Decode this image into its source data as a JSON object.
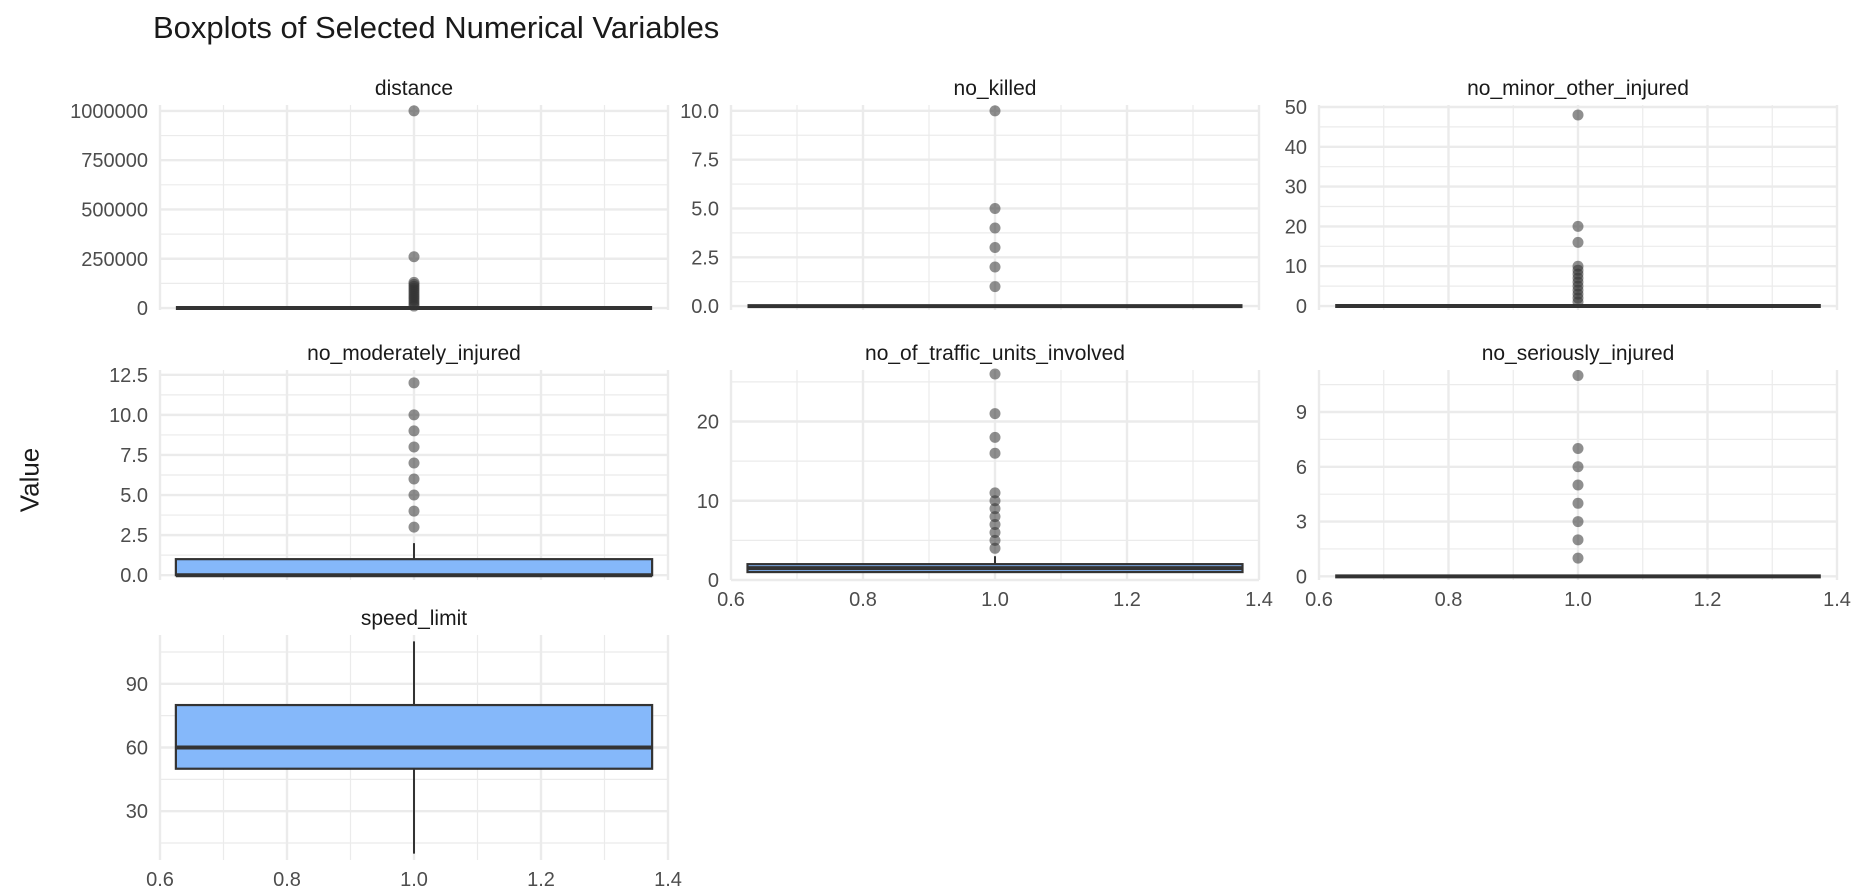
{
  "title": "Boxplots of Selected Numerical Variables",
  "ylabel": "Value",
  "colors": {
    "box_fill": "#85B8FA",
    "line": "#333333",
    "outlier": "#333333",
    "grid": "#EBEBEB"
  },
  "chart_data": {
    "type": "boxplot",
    "title": "Boxplots of Selected Numerical Variables",
    "ylabel": "Value",
    "xlim": [
      0.6,
      1.4
    ],
    "x_ticks": [
      "0.6",
      "0.8",
      "1.0",
      "1.2",
      "1.4"
    ],
    "box_x_range": [
      0.625,
      1.375
    ],
    "grid": true,
    "facets": [
      {
        "name": "distance",
        "ylim": [
          -10000,
          1030000
        ],
        "y_ticks": [
          0,
          250000,
          500000,
          750000,
          1000000
        ],
        "y_tick_labels": [
          "0",
          "250000",
          "500000",
          "750000",
          "1000000"
        ],
        "stats": {
          "lower_whisker": 0,
          "q1": 0,
          "median": 0,
          "q3": 0,
          "upper_whisker": 0
        },
        "outliers": [
          1000000,
          260000,
          130000,
          120000,
          110000,
          100000,
          90000,
          80000,
          70000,
          60000,
          50000,
          40000,
          30000,
          20000,
          10000
        ],
        "show_x_ticks": false
      },
      {
        "name": "no_killed",
        "ylim": [
          -0.2,
          10.3
        ],
        "y_ticks": [
          0,
          2.5,
          5,
          7.5,
          10
        ],
        "y_tick_labels": [
          "0.0",
          "2.5",
          "5.0",
          "7.5",
          "10.0"
        ],
        "stats": {
          "lower_whisker": 0,
          "q1": 0,
          "median": 0,
          "q3": 0,
          "upper_whisker": 0
        },
        "outliers": [
          10,
          5,
          4,
          3,
          2,
          1
        ],
        "show_x_ticks": false
      },
      {
        "name": "no_minor_other_injured",
        "ylim": [
          -1,
          50.5
        ],
        "y_ticks": [
          0,
          10,
          20,
          30,
          40,
          50
        ],
        "y_tick_labels": [
          "0",
          "10",
          "20",
          "30",
          "40",
          "50"
        ],
        "stats": {
          "lower_whisker": 0,
          "q1": 0,
          "median": 0,
          "q3": 0,
          "upper_whisker": 0
        },
        "outliers": [
          48,
          20,
          16,
          10,
          9,
          8,
          7,
          6,
          5,
          4,
          3,
          2,
          1
        ],
        "show_x_ticks": false
      },
      {
        "name": "no_moderately_injured",
        "ylim": [
          -0.3,
          12.8
        ],
        "y_ticks": [
          0,
          2.5,
          5,
          7.5,
          10,
          12.5
        ],
        "y_tick_labels": [
          "0.0",
          "2.5",
          "5.0",
          "7.5",
          "10.0",
          "12.5"
        ],
        "stats": {
          "lower_whisker": 0,
          "q1": 0,
          "median": 0,
          "q3": 1,
          "upper_whisker": 2
        },
        "outliers": [
          12,
          10,
          9,
          8,
          7,
          6,
          5,
          4,
          3
        ],
        "show_x_ticks": false
      },
      {
        "name": "no_of_traffic_units_involved",
        "ylim": [
          0,
          26.5
        ],
        "y_ticks": [
          0,
          10,
          20
        ],
        "y_tick_labels": [
          "0",
          "10",
          "20"
        ],
        "stats": {
          "lower_whisker": 1,
          "q1": 1,
          "median": 1.5,
          "q3": 2,
          "upper_whisker": 3
        },
        "outliers": [
          26,
          21,
          18,
          16,
          11,
          10,
          9,
          8,
          7,
          6,
          5,
          4
        ],
        "show_x_ticks": true
      },
      {
        "name": "no_seriously_injured",
        "ylim": [
          -0.2,
          11.3
        ],
        "y_ticks": [
          0,
          3,
          6,
          9
        ],
        "y_tick_labels": [
          "0",
          "3",
          "6",
          "9"
        ],
        "stats": {
          "lower_whisker": 0,
          "q1": 0,
          "median": 0,
          "q3": 0,
          "upper_whisker": 0
        },
        "outliers": [
          11,
          7,
          6,
          5,
          4,
          3,
          2,
          1
        ],
        "show_x_ticks": true
      },
      {
        "name": "speed_limit",
        "ylim": [
          7,
          113
        ],
        "y_ticks": [
          30,
          60,
          90
        ],
        "y_tick_labels": [
          "30",
          "60",
          "90"
        ],
        "stats": {
          "lower_whisker": 10,
          "q1": 50,
          "median": 60,
          "q3": 80,
          "upper_whisker": 110
        },
        "outliers": [],
        "show_x_ticks": true
      }
    ]
  }
}
